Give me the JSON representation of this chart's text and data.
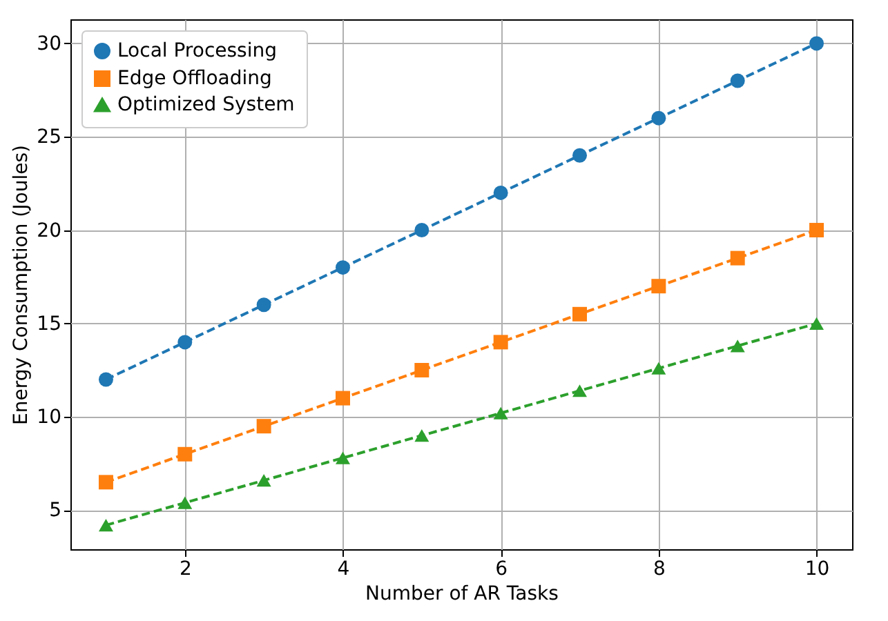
{
  "chart_data": {
    "type": "line",
    "xlabel": "Number of AR Tasks",
    "ylabel": "Energy Consumption (Joules)",
    "x": [
      1,
      2,
      3,
      4,
      5,
      6,
      7,
      8,
      9,
      10
    ],
    "series": [
      {
        "name": "Local Processing",
        "color": "#1f77b4",
        "marker": "circle",
        "values": [
          12,
          14,
          16,
          18,
          20,
          22,
          24,
          26,
          28,
          30
        ]
      },
      {
        "name": "Edge Offloading",
        "color": "#ff7f0e",
        "marker": "square",
        "values": [
          6.5,
          8,
          9.5,
          11,
          12.5,
          14,
          15.5,
          17,
          18.5,
          20
        ]
      },
      {
        "name": "Optimized System",
        "color": "#2ca02c",
        "marker": "triangle",
        "values": [
          4.2,
          5.4,
          6.6,
          7.8,
          9,
          10.2,
          11.4,
          12.6,
          13.8,
          15
        ]
      }
    ],
    "xlim": [
      0.55,
      10.45
    ],
    "xticks": [
      2,
      4,
      6,
      8,
      10
    ],
    "ylim": [
      2.91,
      31.29
    ],
    "yticks": [
      5,
      10,
      15,
      20,
      25,
      30
    ],
    "grid": true,
    "legend": "top left",
    "line_style": "dashed"
  }
}
